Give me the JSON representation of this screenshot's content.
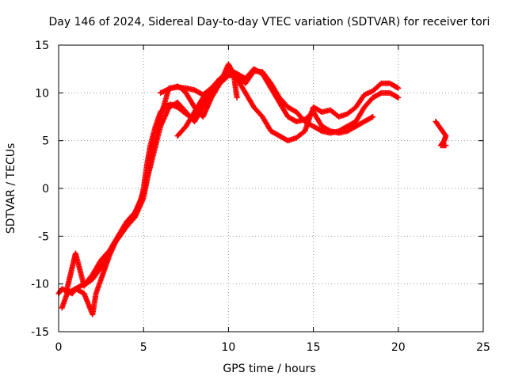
{
  "chart_data": {
    "type": "scatter",
    "title": "Day 146 of 2024, Sidereal Day-to-day VTEC variation (SDTVAR) for receiver tori",
    "xlabel": "GPS time / hours",
    "ylabel": "SDTVAR / TECUs",
    "xlim": [
      0,
      25
    ],
    "ylim": [
      -15,
      15
    ],
    "xticks": [
      0,
      5,
      10,
      15,
      20,
      25
    ],
    "yticks": [
      -15,
      -10,
      -5,
      0,
      5,
      10,
      15
    ],
    "grid": true,
    "marker": "plus",
    "color": "#ff0000",
    "series": [
      {
        "x": [
          0.0,
          0.2,
          0.5,
          0.8,
          1.0,
          1.3,
          1.6,
          2.0,
          2.4,
          2.8,
          3.2,
          3.6,
          4.0,
          4.4,
          4.8,
          5.0,
          5.2,
          5.4,
          5.7,
          6.0,
          6.3,
          6.6,
          7.0,
          7.5,
          8.0,
          8.5,
          9.0,
          9.5,
          10.0,
          10.5,
          11.0,
          11.5,
          12.0,
          12.5,
          13.0,
          13.5,
          14.0,
          14.5,
          15.0,
          15.5,
          16.0,
          16.5,
          17.0,
          17.5,
          18.0,
          18.5
        ],
        "y": [
          -11.0,
          -10.5,
          -10.8,
          -11.0,
          -10.5,
          -10.2,
          -10.0,
          -9.5,
          -8.5,
          -7.5,
          -6.0,
          -5.0,
          -4.0,
          -3.0,
          -1.5,
          0.0,
          2.5,
          4.5,
          6.5,
          8.0,
          8.6,
          8.8,
          8.5,
          7.8,
          7.2,
          9.2,
          10.5,
          11.0,
          11.8,
          12.0,
          11.5,
          12.5,
          12.0,
          10.5,
          9.0,
          7.5,
          7.0,
          7.2,
          8.0,
          6.5,
          6.0,
          5.8,
          6.0,
          6.5,
          7.0,
          7.5
        ]
      },
      {
        "x": [
          0.5,
          0.7,
          0.9,
          1.0,
          1.5,
          2.0,
          2.5,
          3.0,
          3.5,
          4.0,
          4.5,
          5.0,
          5.5,
          6.0,
          6.5,
          7.0,
          7.5,
          8.0,
          8.5,
          9.0,
          9.5,
          10.0,
          10.5,
          11.0,
          11.5,
          12.0,
          12.5,
          13.0,
          13.5,
          14.0,
          14.5,
          15.0,
          15.5,
          16.0,
          16.5,
          17.0,
          17.5,
          18.0,
          18.5,
          19.0,
          19.5,
          20.0
        ],
        "y": [
          -10.5,
          -9.0,
          -7.5,
          -6.8,
          -10.2,
          -9.0,
          -7.5,
          -6.5,
          -5.0,
          -3.5,
          -2.5,
          -0.5,
          3.0,
          6.5,
          8.5,
          9.0,
          8.0,
          7.0,
          8.5,
          10.0,
          11.0,
          12.5,
          12.0,
          11.0,
          12.3,
          12.2,
          11.0,
          9.5,
          8.5,
          8.0,
          7.0,
          6.5,
          6.0,
          5.8,
          6.0,
          6.5,
          7.0,
          8.5,
          9.5,
          10.0,
          10.0,
          9.5
        ]
      },
      {
        "x": [
          0.2,
          0.5,
          1.0,
          1.5,
          2.0,
          2.2,
          2.5,
          3.0,
          3.5,
          4.0,
          4.5,
          5.0,
          5.5,
          6.0,
          6.5,
          7.0,
          7.5,
          8.0,
          8.5,
          9.0,
          9.5,
          10.0,
          10.5,
          11.0,
          11.5,
          12.0,
          12.5,
          13.0,
          13.5,
          14.0,
          14.5,
          15.0,
          15.5,
          16.0,
          16.5,
          17.0,
          17.5,
          18.0,
          18.5,
          19.0,
          19.5,
          20.0
        ],
        "y": [
          -12.5,
          -11.0,
          -10.5,
          -11.0,
          -13.2,
          -11.0,
          -9.5,
          -7.0,
          -5.0,
          -4.0,
          -3.0,
          -1.0,
          3.5,
          7.5,
          10.5,
          10.6,
          10.5,
          10.3,
          9.8,
          10.5,
          11.2,
          12.0,
          11.5,
          10.0,
          8.5,
          7.5,
          6.0,
          5.5,
          5.0,
          5.3,
          6.0,
          8.5,
          8.0,
          8.2,
          7.5,
          7.8,
          8.5,
          9.8,
          10.2,
          11.0,
          11.0,
          10.5
        ]
      },
      {
        "x": [
          6.0,
          6.5,
          7.0,
          7.2,
          7.5,
          8.0,
          8.5,
          9.0,
          9.5,
          10.0,
          10.3,
          10.5
        ],
        "y": [
          10.0,
          10.4,
          10.7,
          10.5,
          10.0,
          8.5,
          7.5,
          9.5,
          11.0,
          13.0,
          12.0,
          9.5
        ]
      },
      {
        "x": [
          7.0,
          7.5,
          8.0,
          8.5,
          9.0,
          9.5,
          10.0
        ],
        "y": [
          5.5,
          6.5,
          8.0,
          9.5,
          10.5,
          11.5,
          12.0
        ]
      },
      {
        "x": [
          22.2,
          22.4,
          22.6,
          22.8,
          22.7,
          22.5,
          22.8
        ],
        "y": [
          7.0,
          6.5,
          6.0,
          5.5,
          5.0,
          4.5,
          4.5
        ]
      }
    ]
  }
}
